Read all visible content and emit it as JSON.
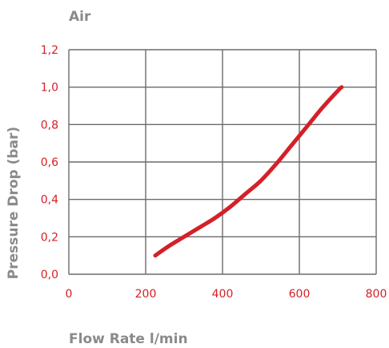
{
  "chart_data": {
    "type": "line",
    "title": "Air",
    "xlabel": "Flow Rate l/min",
    "ylabel": "Pressure Drop (bar)",
    "xlim": [
      0,
      800
    ],
    "ylim": [
      0,
      1.2
    ],
    "x_ticks": [
      "0",
      "200",
      "400",
      "600",
      "800"
    ],
    "y_ticks": [
      "0,0",
      "0,2",
      "0,4",
      "0,6",
      "0,8",
      "1,0",
      "1,2"
    ],
    "grid": true,
    "series_color": "#d42027",
    "series": [
      {
        "x": [
          225,
          260,
          300,
          340,
          380,
          420,
          460,
          500,
          540,
          580,
          620,
          660,
          700,
          710
        ],
        "y": [
          0.1,
          0.15,
          0.2,
          0.25,
          0.3,
          0.36,
          0.43,
          0.5,
          0.59,
          0.69,
          0.79,
          0.89,
          0.98,
          1.0
        ]
      }
    ]
  }
}
